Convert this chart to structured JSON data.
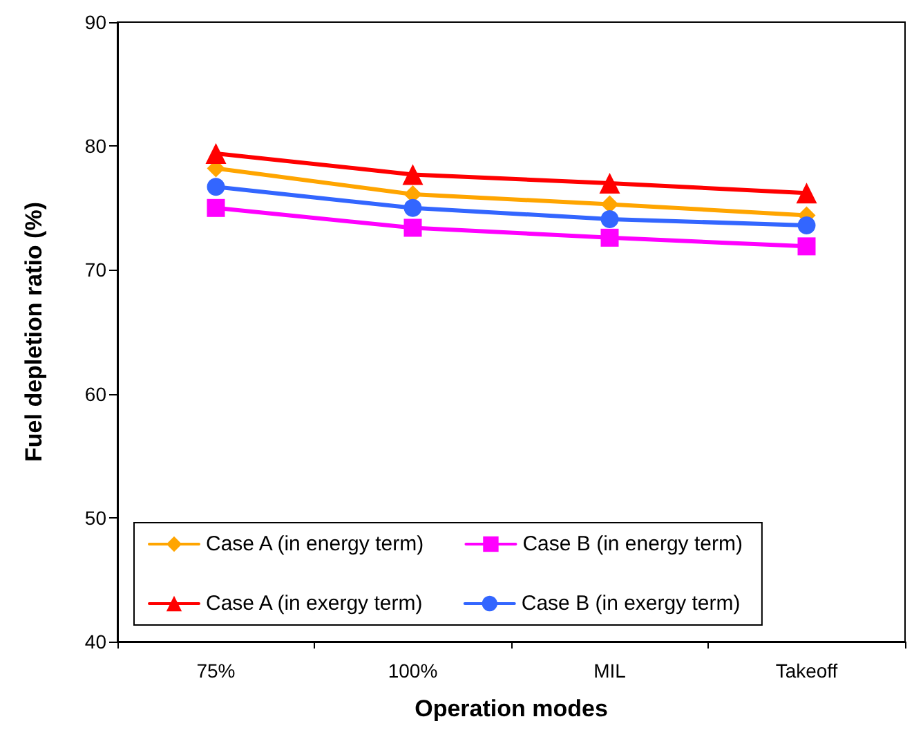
{
  "chart_data": {
    "type": "line",
    "xlabel": "Operation modes",
    "ylabel": "Fuel depletion ratio (%)",
    "categories": [
      "75%",
      "100%",
      "MIL",
      "Takeoff"
    ],
    "series": [
      {
        "name": "Case A (in energy term)",
        "color": "#ffa500",
        "marker": "diamond",
        "values": [
          78.2,
          76.1,
          75.3,
          74.4
        ]
      },
      {
        "name": "Case B (in energy term)",
        "color": "#ff00ff",
        "marker": "square",
        "values": [
          75.0,
          73.4,
          72.6,
          71.9
        ]
      },
      {
        "name": "Case A (in exergy term)",
        "color": "#ff0000",
        "marker": "triangle",
        "values": [
          79.4,
          77.7,
          77.0,
          76.2
        ]
      },
      {
        "name": "Case B (in exergy term)",
        "color": "#3366ff",
        "marker": "circle",
        "values": [
          76.7,
          75.0,
          74.1,
          73.6
        ]
      }
    ],
    "ylim": [
      40,
      90
    ],
    "yticks": [
      40,
      50,
      60,
      70,
      80,
      90
    ],
    "grid": false,
    "legend": "bottom"
  }
}
